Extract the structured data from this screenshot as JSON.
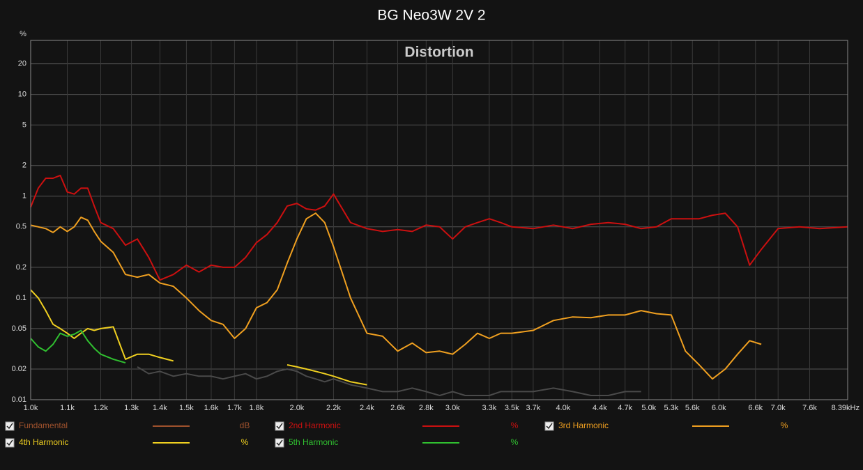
{
  "chart_data": {
    "type": "line",
    "title": "BG Neo3W 2V 2",
    "subtitle": "Distortion",
    "ylabel": "%",
    "xscale": "log",
    "yscale": "log",
    "grid": true,
    "xlim": [
      1000,
      8390
    ],
    "ylim": [
      0.01,
      34
    ],
    "xticks": [
      {
        "value": 1000,
        "label": "1.0k"
      },
      {
        "value": 1100,
        "label": "1.1k"
      },
      {
        "value": 1200,
        "label": "1.2k"
      },
      {
        "value": 1300,
        "label": "1.3k"
      },
      {
        "value": 1400,
        "label": "1.4k"
      },
      {
        "value": 1500,
        "label": "1.5k"
      },
      {
        "value": 1600,
        "label": "1.6k"
      },
      {
        "value": 1700,
        "label": "1.7k"
      },
      {
        "value": 1800,
        "label": "1.8k"
      },
      {
        "value": 2000,
        "label": "2.0k"
      },
      {
        "value": 2200,
        "label": "2.2k"
      },
      {
        "value": 2400,
        "label": "2.4k"
      },
      {
        "value": 2600,
        "label": "2.6k"
      },
      {
        "value": 2800,
        "label": "2.8k"
      },
      {
        "value": 3000,
        "label": "3.0k"
      },
      {
        "value": 3300,
        "label": "3.3k"
      },
      {
        "value": 3500,
        "label": "3.5k"
      },
      {
        "value": 3700,
        "label": "3.7k"
      },
      {
        "value": 4000,
        "label": "4.0k"
      },
      {
        "value": 4400,
        "label": "4.4k"
      },
      {
        "value": 4700,
        "label": "4.7k"
      },
      {
        "value": 5000,
        "label": "5.0k"
      },
      {
        "value": 5300,
        "label": "5.3k"
      },
      {
        "value": 5600,
        "label": "5.6k"
      },
      {
        "value": 6000,
        "label": "6.0k"
      },
      {
        "value": 6600,
        "label": "6.6k"
      },
      {
        "value": 7000,
        "label": "7.0k"
      },
      {
        "value": 7600,
        "label": "7.6k"
      },
      {
        "value": 8390,
        "label": "8.39kHz"
      }
    ],
    "yticks": [
      0.01,
      0.02,
      0.05,
      0.1,
      0.2,
      0.5,
      1,
      2,
      5,
      10,
      20
    ],
    "x": [
      1000,
      1020,
      1040,
      1060,
      1080,
      1100,
      1120,
      1140,
      1160,
      1180,
      1200,
      1240,
      1280,
      1320,
      1360,
      1400,
      1450,
      1500,
      1550,
      1600,
      1650,
      1700,
      1750,
      1800,
      1850,
      1900,
      1950,
      2000,
      2050,
      2100,
      2150,
      2200,
      2300,
      2400,
      2500,
      2600,
      2700,
      2800,
      2900,
      3000,
      3100,
      3200,
      3300,
      3400,
      3500,
      3700,
      3900,
      4100,
      4300,
      4500,
      4700,
      4900,
      5100,
      5300,
      5500,
      5700,
      5900,
      6100,
      6300,
      6500,
      6700,
      7000,
      7400,
      7800,
      8390
    ],
    "series": [
      {
        "name": "Fundamental",
        "unit": "dB",
        "color": "#a0522d",
        "values": [
          null,
          null,
          null,
          null,
          null,
          null,
          null,
          null,
          null,
          null,
          null,
          null,
          null,
          null,
          null,
          null,
          null,
          null,
          null,
          null,
          null,
          null,
          null,
          null,
          null,
          null,
          null,
          null,
          null,
          null,
          null,
          null,
          null,
          null,
          null,
          null,
          null,
          null,
          null,
          null,
          null,
          null,
          null,
          null,
          null,
          null,
          null,
          null,
          null,
          null,
          null,
          null,
          null,
          null,
          null,
          null,
          null,
          null,
          null,
          null,
          null,
          null,
          null,
          null,
          null
        ]
      },
      {
        "color": "#4a4a4a",
        "values": [
          null,
          null,
          null,
          null,
          null,
          null,
          null,
          null,
          null,
          null,
          null,
          null,
          null,
          0.021,
          0.018,
          0.019,
          0.017,
          0.018,
          0.017,
          0.017,
          0.016,
          0.017,
          0.018,
          0.016,
          0.017,
          0.019,
          0.02,
          0.019,
          0.017,
          0.016,
          0.015,
          0.016,
          0.014,
          0.013,
          0.012,
          0.012,
          0.013,
          0.012,
          0.011,
          0.012,
          0.011,
          0.011,
          0.011,
          0.012,
          0.012,
          0.012,
          0.013,
          0.012,
          0.011,
          0.011,
          0.012,
          0.012,
          null,
          null,
          null,
          null,
          null,
          null,
          null,
          null,
          null,
          null,
          null,
          null,
          null
        ]
      },
      {
        "name": "2nd Harmonic",
        "unit": "%",
        "color": "#cc1010",
        "values": [
          0.78,
          1.2,
          1.5,
          1.5,
          1.6,
          1.1,
          1.05,
          1.2,
          1.2,
          0.8,
          0.55,
          0.48,
          0.33,
          0.38,
          0.25,
          0.15,
          0.17,
          0.21,
          0.18,
          0.21,
          0.2,
          0.2,
          0.25,
          0.35,
          0.42,
          0.55,
          0.8,
          0.85,
          0.75,
          0.73,
          0.8,
          1.05,
          0.55,
          0.48,
          0.45,
          0.47,
          0.45,
          0.52,
          0.5,
          0.38,
          0.5,
          0.55,
          0.6,
          0.55,
          0.5,
          0.48,
          0.52,
          0.48,
          0.53,
          0.55,
          0.53,
          0.48,
          0.5,
          0.6,
          0.6,
          0.6,
          0.65,
          0.68,
          0.5,
          0.21,
          0.3,
          0.48,
          0.5,
          0.48,
          0.5
        ]
      },
      {
        "name": "3rd Harmonic",
        "unit": "%",
        "color": "#f0a020",
        "values": [
          0.52,
          0.5,
          0.48,
          0.44,
          0.5,
          0.45,
          0.5,
          0.62,
          0.58,
          0.45,
          0.36,
          0.28,
          0.17,
          0.16,
          0.17,
          0.14,
          0.13,
          0.1,
          0.075,
          0.06,
          0.055,
          0.04,
          0.05,
          0.08,
          0.09,
          0.12,
          0.22,
          0.38,
          0.6,
          0.68,
          0.55,
          0.32,
          0.1,
          0.045,
          0.042,
          0.03,
          0.036,
          0.029,
          0.03,
          0.028,
          0.035,
          0.045,
          0.04,
          0.045,
          0.045,
          0.048,
          0.06,
          0.065,
          0.064,
          0.068,
          0.068,
          0.075,
          0.07,
          0.068,
          0.03,
          0.022,
          0.016,
          0.02,
          0.028,
          0.038,
          0.035,
          null,
          null,
          null,
          null
        ]
      },
      {
        "name": "4th Harmonic",
        "unit": "%",
        "color": "#f0d020",
        "values": [
          0.12,
          0.1,
          0.075,
          0.055,
          0.05,
          0.045,
          0.04,
          0.045,
          0.05,
          0.048,
          0.05,
          0.052,
          0.025,
          0.028,
          0.028,
          0.026,
          0.024,
          null,
          null,
          null,
          null,
          null,
          null,
          null,
          null,
          null,
          0.022,
          0.021,
          0.02,
          0.019,
          0.018,
          0.017,
          0.015,
          0.014,
          null,
          null,
          null,
          null,
          null,
          null,
          null,
          null,
          null,
          null,
          null,
          null,
          null,
          null,
          null,
          null,
          null,
          null,
          null,
          null,
          null,
          null,
          null,
          null,
          null,
          null,
          null,
          null,
          null,
          null,
          null
        ]
      },
      {
        "name": "5th Harmonic",
        "unit": "%",
        "color": "#30c030",
        "values": [
          0.04,
          0.033,
          0.03,
          0.035,
          0.045,
          0.042,
          0.044,
          0.048,
          0.038,
          0.032,
          0.028,
          0.025,
          0.023,
          null,
          null,
          null,
          null,
          null,
          null,
          null,
          null,
          null,
          null,
          null,
          null,
          null,
          null,
          null,
          null,
          null,
          null,
          null,
          null,
          null,
          null,
          null,
          null,
          null,
          null,
          null,
          null,
          null,
          null,
          null,
          null,
          null,
          null,
          null,
          null,
          null,
          null,
          null,
          null,
          null,
          null,
          null,
          null,
          null,
          null,
          null,
          null,
          null,
          null,
          null,
          null
        ]
      }
    ]
  }
}
